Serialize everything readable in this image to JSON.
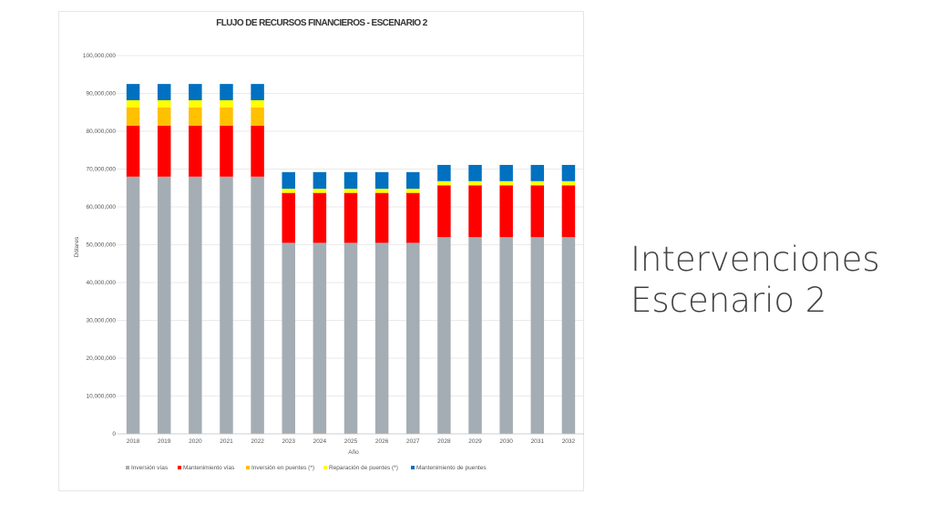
{
  "slide": {
    "title_line1": "Intervenciones",
    "title_line2": "Escenario 2"
  },
  "chart_data": {
    "type": "bar",
    "stacked": true,
    "title": "FLUJO DE RECURSOS FINANCIEROS - ESCENARIO 2",
    "xlabel": "Año",
    "ylabel": "Dólares",
    "ylim": [
      0,
      100000000
    ],
    "yticks": [
      "0",
      "10,000,000",
      "20,000,000",
      "30,000,000",
      "40,000,000",
      "50,000,000",
      "60,000,000",
      "70,000,000",
      "80,000,000",
      "90,000,000",
      "100,000,000"
    ],
    "grid": true,
    "legend_position": "bottom",
    "categories": [
      "2018",
      "2019",
      "2020",
      "2021",
      "2022",
      "2023",
      "2024",
      "2025",
      "2026",
      "2027",
      "2028",
      "2029",
      "2030",
      "2031",
      "2032"
    ],
    "series": [
      {
        "name": "Inversión vías",
        "color": "#a5adb4",
        "values": [
          68000000,
          68000000,
          68000000,
          68000000,
          68000000,
          50500000,
          50500000,
          50500000,
          50500000,
          50500000,
          52000000,
          52000000,
          52000000,
          52000000,
          52000000
        ]
      },
      {
        "name": "Mantenimiento vías",
        "color": "#ff0000",
        "values": [
          13500000,
          13500000,
          13500000,
          13500000,
          13500000,
          13200000,
          13200000,
          13200000,
          13200000,
          13200000,
          13700000,
          13700000,
          13700000,
          13700000,
          13700000
        ]
      },
      {
        "name": "Inversión en puentes (*)",
        "color": "#ffc000",
        "values": [
          4800000,
          4800000,
          4800000,
          4800000,
          4800000,
          0,
          0,
          0,
          0,
          0,
          0,
          0,
          0,
          0,
          0
        ]
      },
      {
        "name": "Reparación de puentes (*)",
        "color": "#ffff00",
        "values": [
          1900000,
          1900000,
          1900000,
          1900000,
          1900000,
          1100000,
          1100000,
          1100000,
          1100000,
          1100000,
          1100000,
          1100000,
          1100000,
          1100000,
          1100000
        ]
      },
      {
        "name": "Mantenimiento de puentes",
        "color": "#0070c0",
        "values": [
          4300000,
          4300000,
          4300000,
          4300000,
          4300000,
          4400000,
          4400000,
          4400000,
          4400000,
          4400000,
          4300000,
          4300000,
          4300000,
          4300000,
          4300000
        ]
      }
    ]
  }
}
